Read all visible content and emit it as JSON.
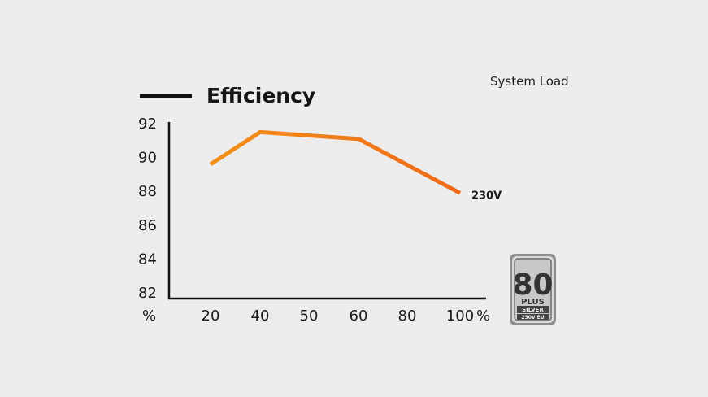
{
  "chart_data": {
    "type": "line",
    "title": "Efficiency",
    "xlabel": "System Load",
    "ylabel": "",
    "x_unit": "%",
    "y_unit": "%",
    "x_ticks": [
      "20",
      "40",
      "50",
      "60",
      "80",
      "100"
    ],
    "y_ticks": [
      "92",
      "90",
      "88",
      "86",
      "84",
      "82"
    ],
    "ylim": [
      82,
      92
    ],
    "grid": false,
    "series": [
      {
        "name": "230V",
        "x": [
          20,
          40,
          60,
          100
        ],
        "y": [
          89.6,
          91.5,
          91.1,
          87.9
        ],
        "color": "#f39019",
        "color_end": "#f06a1a"
      }
    ],
    "legend_swatch_color": "#111111"
  },
  "badge": {
    "icon": "80-plus-silver-badge",
    "number": "80",
    "plus": "PLUS",
    "level": "SILVER",
    "region": "230V EU"
  }
}
